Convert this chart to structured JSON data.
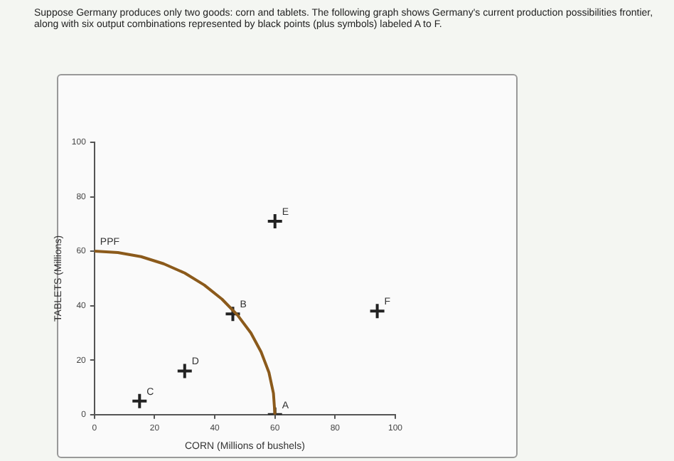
{
  "chart_data": {
    "type": "scatter",
    "title": "Suppose Germany produces only two goods: corn and tablets. The following graph shows Germany's current production possibilities frontier, along with six output combinations represented by black points (plus symbols) labeled A to F.",
    "xlabel": "CORN (Millions of bushels)",
    "ylabel": "TABLETS (Millions)",
    "xlim": [
      0,
      100
    ],
    "xticks": [
      0,
      20,
      40,
      60,
      80,
      100
    ],
    "ylim": [
      0,
      100
    ],
    "yticks": [
      0,
      20,
      40,
      60,
      80,
      100
    ],
    "grid": false,
    "legend": false,
    "series": [
      {
        "name": "PPF",
        "type": "line",
        "color": "#8b5a1b",
        "x": [
          0,
          7.8,
          15.5,
          23.0,
          30,
          36.5,
          42.4,
          47.6,
          52.0,
          55.4,
          58.0,
          59.5,
          60
        ],
        "values": [
          60,
          59.5,
          58.0,
          55.4,
          52.0,
          47.6,
          42.4,
          36.5,
          30,
          23.0,
          15.5,
          7.8,
          0
        ]
      },
      {
        "marker": "cross",
        "color": "#222222",
        "x": [
          60,
          46,
          15,
          30,
          60,
          94
        ],
        "values": [
          0,
          37,
          5,
          16,
          71,
          38
        ]
      }
    ],
    "annotations": [
      {
        "text": "A",
        "x": 60,
        "y": 0
      },
      {
        "text": "B",
        "x": 46,
        "y": 37
      },
      {
        "text": "C",
        "x": 15,
        "y": 5
      },
      {
        "text": "D",
        "x": 30,
        "y": 16
      },
      {
        "text": "E",
        "x": 60,
        "y": 71
      },
      {
        "text": "F",
        "x": 94,
        "y": 38
      }
    ]
  }
}
